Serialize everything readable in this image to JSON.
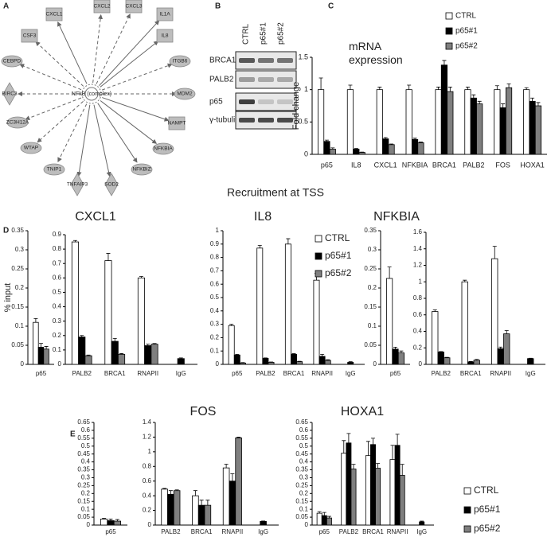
{
  "panel_labels": [
    "A",
    "B",
    "C",
    "D",
    "E"
  ],
  "network": {
    "center": "NFkB (complex)",
    "nodes": [
      "CXCL1",
      "CXCL2",
      "CXCL3",
      "IL1A",
      "IL8",
      "CSF3",
      "CEBPD",
      "ITGB6",
      "BIRC3",
      "MDM2",
      "ZC3H12A",
      "NAMPT",
      "WTAP",
      "NFKBIA",
      "TNIP1",
      "TNFAIP3",
      "SOD2",
      "NFKBIZ"
    ]
  },
  "blot": {
    "lanes": [
      "CTRL",
      "p65#1",
      "p65#2"
    ],
    "rows": [
      "BRCA1",
      "PALB2",
      "p65",
      "γ-tubulin"
    ]
  },
  "section_title": "Recruitment at TSS",
  "chart_data": [
    {
      "type": "bar",
      "title": "mRNA expression",
      "y_label": "Fold change",
      "legend": "upper right",
      "categories": [
        "p65",
        "IL8",
        "CXCL1",
        "NFKBIA",
        "BRCA1",
        "PALB2",
        "FOS",
        "HOXA1"
      ],
      "ylim": [
        0,
        1.5
      ],
      "yticks": [
        0,
        0.5,
        1,
        1.5
      ],
      "series": [
        {
          "name": "CTRL",
          "color": "#ffffff",
          "values": [
            1,
            1,
            1,
            1,
            1,
            1,
            1,
            1
          ],
          "errors": [
            0.18,
            0.07,
            0.04,
            0.07,
            0.04,
            0.04,
            0.06,
            0.03
          ]
        },
        {
          "name": "p65#1",
          "color": "#000000",
          "values": [
            0.2,
            0.08,
            0.24,
            0.23,
            1.38,
            0.87,
            0.72,
            0.82
          ],
          "errors": [
            0.02,
            0.01,
            0.02,
            0.02,
            0.07,
            0.05,
            0.06,
            0.05
          ]
        },
        {
          "name": "p65#2",
          "color": "#7f7f7f",
          "values": [
            0.08,
            0.03,
            0.15,
            0.18,
            0.97,
            0.78,
            1.03,
            0.75
          ],
          "errors": [
            0.02,
            0.005,
            0.01,
            0.01,
            0.07,
            0.04,
            0.06,
            0.05
          ]
        }
      ]
    },
    {
      "type": "bar",
      "title": "CXCL1",
      "y_label": "% input",
      "categories": [
        "p65"
      ],
      "ylim": [
        0,
        0.35
      ],
      "yticks": [
        0,
        0.05,
        0.1,
        0.15,
        0.2,
        0.25,
        0.3,
        0.35
      ],
      "series": [
        {
          "name": "CTRL",
          "color": "#ffffff",
          "values": [
            0.11
          ],
          "errors": [
            0.01
          ]
        },
        {
          "name": "p65#1",
          "color": "#000000",
          "values": [
            0.045
          ],
          "errors": [
            0.01
          ]
        },
        {
          "name": "p65#2",
          "color": "#7f7f7f",
          "values": [
            0.04
          ],
          "errors": [
            0.007
          ]
        }
      ]
    },
    {
      "type": "bar",
      "categories": [
        "PALB2",
        "BRCA1",
        "RNAPII",
        "IgG"
      ],
      "ylim": [
        0,
        0.9
      ],
      "yticks": [
        0,
        0.1,
        0.2,
        0.3,
        0.4,
        0.5,
        0.6,
        0.7,
        0.8,
        0.9
      ],
      "series": [
        {
          "name": "CTRL",
          "color": "#ffffff",
          "values": [
            0.85,
            0.72,
            0.6,
            null
          ],
          "errors": [
            0.01,
            0.05,
            0.01,
            null
          ]
        },
        {
          "name": "p65#1",
          "color": "#000000",
          "values": [
            0.19,
            0.16,
            0.13,
            0.04
          ],
          "errors": [
            0.01,
            0.02,
            0.01,
            0.005
          ]
        },
        {
          "name": "p65#2",
          "color": "#7f7f7f",
          "values": [
            0.06,
            0.07,
            0.14,
            null
          ],
          "errors": [
            0.005,
            0.005,
            0.005,
            null
          ]
        }
      ]
    },
    {
      "type": "bar",
      "title": "IL8",
      "legend": "upper right",
      "categories": [
        "p65",
        "PALB2",
        "BRCA1",
        "RNAPII",
        "IgG"
      ],
      "ylim": [
        0,
        1
      ],
      "yticks": [
        0,
        0.1,
        0.2,
        0.3,
        0.4,
        0.5,
        0.6,
        0.7,
        0.8,
        0.9,
        1
      ],
      "series": [
        {
          "name": "CTRL",
          "color": "#ffffff",
          "values": [
            0.29,
            0.87,
            0.9,
            0.63,
            null
          ],
          "errors": [
            0.01,
            0.02,
            0.04,
            0.05,
            null
          ]
        },
        {
          "name": "p65#1",
          "color": "#000000",
          "values": [
            0.07,
            0.045,
            0.075,
            0.06,
            0.015
          ],
          "errors": [
            0.005,
            0.003,
            0.005,
            0.015,
            0.005
          ]
        },
        {
          "name": "p65#2",
          "color": "#7f7f7f",
          "values": [
            0.01,
            0.015,
            0.02,
            0.03,
            null
          ],
          "errors": [
            0.003,
            0.003,
            0.003,
            0.005,
            null
          ]
        }
      ]
    },
    {
      "type": "bar",
      "title": "NFKBIA",
      "categories": [
        "p65"
      ],
      "ylim": [
        0,
        0.35
      ],
      "yticks": [
        0,
        0.05,
        0.1,
        0.15,
        0.2,
        0.25,
        0.3,
        0.35
      ],
      "series": [
        {
          "name": "CTRL",
          "color": "#ffffff",
          "values": [
            0.225
          ],
          "errors": [
            0.03
          ]
        },
        {
          "name": "p65#1",
          "color": "#000000",
          "values": [
            0.04
          ],
          "errors": [
            0.005
          ]
        },
        {
          "name": "p65#2",
          "color": "#7f7f7f",
          "values": [
            0.03
          ],
          "errors": [
            0.005
          ]
        }
      ]
    },
    {
      "type": "bar",
      "categories": [
        "PALB2",
        "BRCA1",
        "RNAPII",
        "IgG"
      ],
      "ylim": [
        0,
        1.6
      ],
      "yticks": [
        0,
        0.2,
        0.4,
        0.6,
        0.8,
        1,
        1.2,
        1.4,
        1.6
      ],
      "series": [
        {
          "name": "CTRL",
          "color": "#ffffff",
          "values": [
            0.64,
            1,
            1.28,
            null
          ],
          "errors": [
            0.02,
            0.02,
            0.15,
            null
          ]
        },
        {
          "name": "p65#1",
          "color": "#000000",
          "values": [
            0.15,
            0.03,
            0.19,
            0.07
          ],
          "errors": [
            0.005,
            0.005,
            0.02,
            0.005
          ]
        },
        {
          "name": "p65#2",
          "color": "#7f7f7f",
          "values": [
            0.08,
            0.05,
            0.37,
            null
          ],
          "errors": [
            0.005,
            0.01,
            0.04,
            null
          ]
        }
      ]
    },
    {
      "type": "bar",
      "title": "FOS",
      "categories": [
        "p65"
      ],
      "ylim": [
        0,
        0.65
      ],
      "yticks": [
        0,
        0.05,
        0.1,
        0.15,
        0.2,
        0.25,
        0.3,
        0.35,
        0.4,
        0.45,
        0.5,
        0.55,
        0.6,
        0.65
      ],
      "series": [
        {
          "name": "CTRL",
          "color": "#ffffff",
          "values": [
            0.038
          ],
          "errors": [
            0.005
          ]
        },
        {
          "name": "p65#1",
          "color": "#000000",
          "values": [
            0.028
          ],
          "errors": [
            0.01
          ]
        },
        {
          "name": "p65#2",
          "color": "#7f7f7f",
          "values": [
            0.025
          ],
          "errors": [
            0.01
          ]
        }
      ]
    },
    {
      "type": "bar",
      "categories": [
        "PALB2",
        "BRCA1",
        "RNAPII",
        "IgG"
      ],
      "ylim": [
        0,
        1.4
      ],
      "yticks": [
        0,
        0.2,
        0.4,
        0.6,
        0.8,
        1,
        1.2,
        1.4
      ],
      "series": [
        {
          "name": "CTRL",
          "color": "#ffffff",
          "values": [
            0.49,
            0.4,
            0.78,
            null
          ],
          "errors": [
            0.01,
            0.07,
            0.05,
            null
          ]
        },
        {
          "name": "p65#1",
          "color": "#000000",
          "values": [
            0.42,
            0.27,
            0.6,
            0.05
          ],
          "errors": [
            0.05,
            0.07,
            0.1,
            0.005
          ]
        },
        {
          "name": "p65#2",
          "color": "#7f7f7f",
          "values": [
            0.47,
            0.27,
            1.19,
            null
          ],
          "errors": [
            0.01,
            0.07,
            0.01,
            null
          ]
        }
      ]
    },
    {
      "type": "bar",
      "title": "HOXA1",
      "legend": "right",
      "categories": [
        "p65",
        "PALB2",
        "BRCA1",
        "RNAPII",
        "IgG"
      ],
      "ylim": [
        0,
        0.65
      ],
      "yticks": [
        0,
        0.05,
        0.1,
        0.15,
        0.2,
        0.25,
        0.3,
        0.35,
        0.4,
        0.45,
        0.5,
        0.55,
        0.6,
        0.65
      ],
      "series": [
        {
          "name": "CTRL",
          "color": "#ffffff",
          "values": [
            0.075,
            0.455,
            0.44,
            0.415,
            null
          ],
          "errors": [
            0.01,
            0.08,
            0.09,
            0.09,
            null
          ]
        },
        {
          "name": "p65#1",
          "color": "#000000",
          "values": [
            0.06,
            0.52,
            0.51,
            0.505,
            0.02
          ],
          "errors": [
            0.02,
            0.06,
            0.04,
            0.07,
            0.005
          ]
        },
        {
          "name": "p65#2",
          "color": "#7f7f7f",
          "values": [
            0.045,
            0.355,
            0.36,
            0.315,
            null
          ],
          "errors": [
            0.01,
            0.03,
            0.03,
            0.07,
            null
          ]
        }
      ]
    }
  ]
}
